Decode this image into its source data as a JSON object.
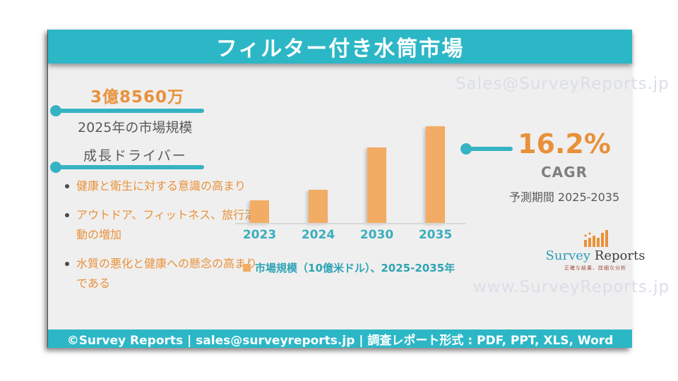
{
  "header": {
    "title": "フィルター付き水筒市場"
  },
  "watermarks": {
    "top": "Sales@SurveyReports.jp",
    "bottom": "www.SurveyReports.jp"
  },
  "market_size": {
    "value": "3億8560万",
    "label": "2025年の市場規模"
  },
  "drivers": {
    "heading": "成長ドライバー",
    "items": [
      "健康と衛生に対する意識の高まり",
      "アウトドア、フィットネス、旅行活動の増加",
      "水質の悪化と健康への懸念の高まりである"
    ]
  },
  "chart_data": {
    "type": "bar",
    "categories": [
      "2023",
      "2024",
      "2030",
      "2035"
    ],
    "values": [
      0.4,
      0.6,
      1.35,
      1.73
    ],
    "values_estimated": true,
    "title": "",
    "xlabel": "",
    "ylabel": "",
    "ylim": [
      0,
      1.9
    ],
    "grid": false,
    "legend_position": "bottom",
    "legend": [
      "市場規模（10億米ドル）、2025-2035年"
    ],
    "bar_color": "#F2AC64"
  },
  "legend": {
    "label": "市場規模（10億米ドル）、2025-2035年"
  },
  "cagr": {
    "value": "16.2%",
    "label": "CAGR",
    "period": "予測期間 2025-2035"
  },
  "logo": {
    "name_part1": "Survey",
    "name_part2": " Reports",
    "tagline": "正確な結果、詳細な分析"
  },
  "footer": {
    "text": "©Survey Reports | sales@surveyreports.jp | 調査レポート形式 : PDF, PPT, XLS, Word"
  },
  "colors": {
    "teal": "#2CB7C6",
    "teal_line": "#35B3C3",
    "teal_label": "#3AAEBE",
    "orange_text": "#E8913A",
    "bar_orange": "#F2AC64",
    "gray_text": "#595959",
    "watermark": "#DADEE6",
    "slide_bg": "#F0EFEF"
  }
}
